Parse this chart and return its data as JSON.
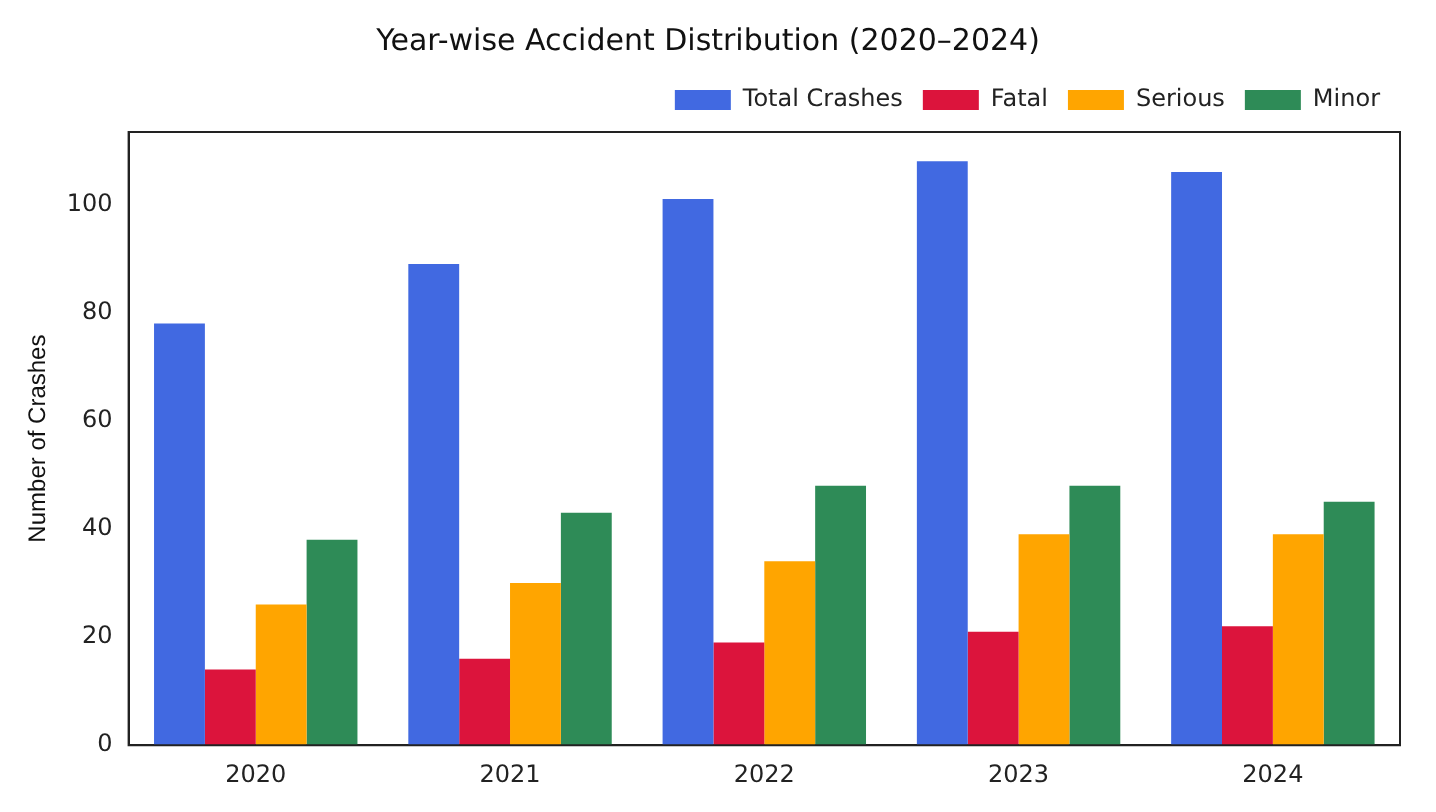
{
  "chart_data": {
    "type": "bar",
    "title": "Year-wise Accident Distribution (2020–2024)",
    "ylabel": "Number of Crashes",
    "categories": [
      "2020",
      "2021",
      "2022",
      "2023",
      "2024"
    ],
    "series": [
      {
        "name": "Total Crashes",
        "color": "#4169e1",
        "values": [
          78,
          89,
          101,
          108,
          106
        ]
      },
      {
        "name": "Fatal",
        "color": "#dc143c",
        "values": [
          14,
          16,
          19,
          21,
          22
        ]
      },
      {
        "name": "Serious",
        "color": "#ffa500",
        "values": [
          26,
          30,
          34,
          39,
          39
        ]
      },
      {
        "name": "Minor",
        "color": "#2e8b57",
        "values": [
          38,
          43,
          48,
          48,
          45
        ]
      }
    ],
    "ylim": [
      0,
      113.4
    ],
    "yticks": [
      0,
      20,
      40,
      60,
      80,
      100
    ],
    "grid": false,
    "legend": "top right"
  }
}
